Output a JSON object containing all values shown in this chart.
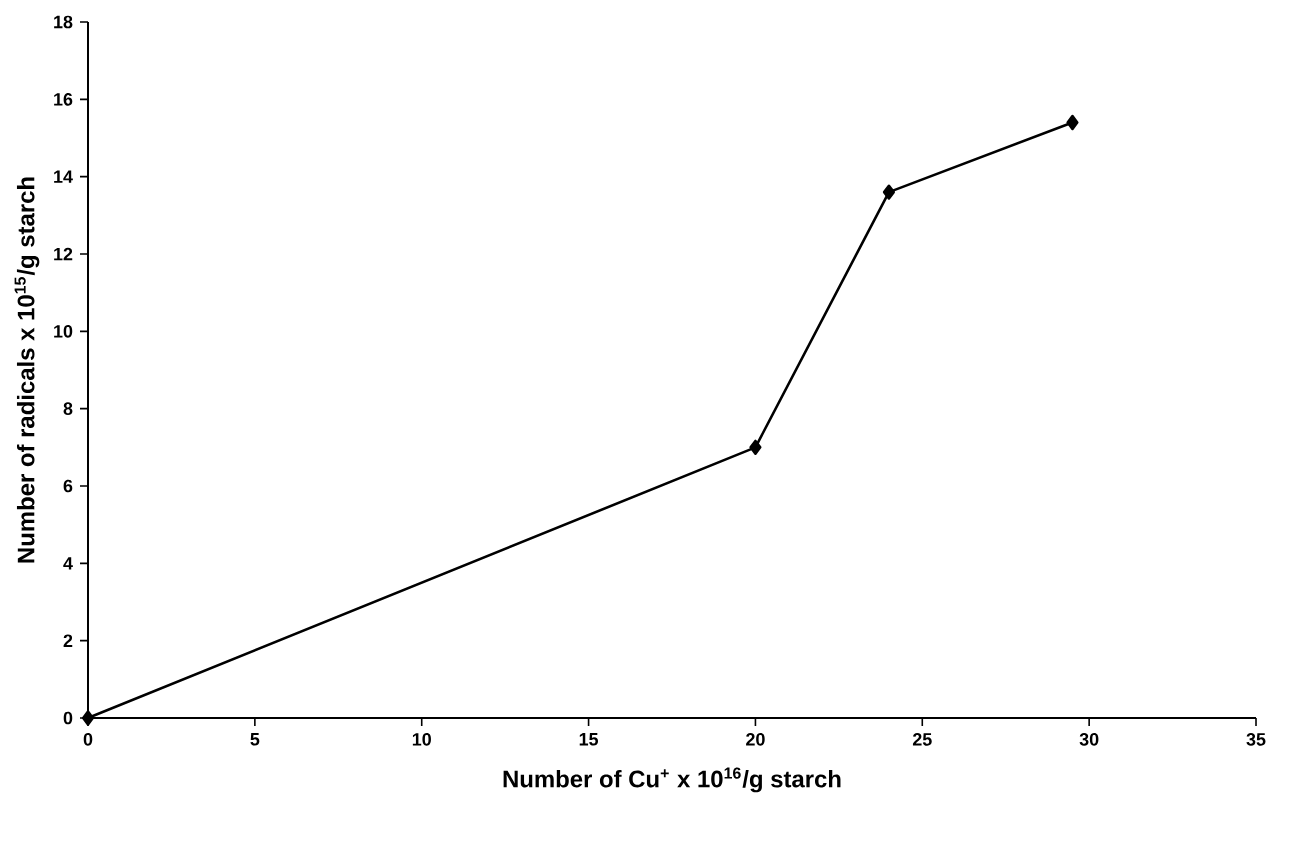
{
  "chart_data": {
    "type": "line",
    "xlabel": "Number of Cu$^{+}$ x 10$^{16}$/g starch",
    "ylabel": "Number of radicals x 10$^{15}$/g starch",
    "x": [
      0,
      20,
      24,
      29.5
    ],
    "series": [
      {
        "color": "#000000",
        "values": [
          0,
          7,
          13.6,
          15.4
        ]
      }
    ],
    "xlim": [
      0,
      35
    ],
    "xticks": [
      0,
      5,
      10,
      15,
      20,
      25,
      30,
      35
    ],
    "ylim": [
      0,
      18
    ],
    "yticks": [
      0,
      2,
      4,
      6,
      8,
      10,
      12,
      14,
      16,
      18
    ],
    "marker": "diamond",
    "line_style": "solid",
    "grid": false
  }
}
